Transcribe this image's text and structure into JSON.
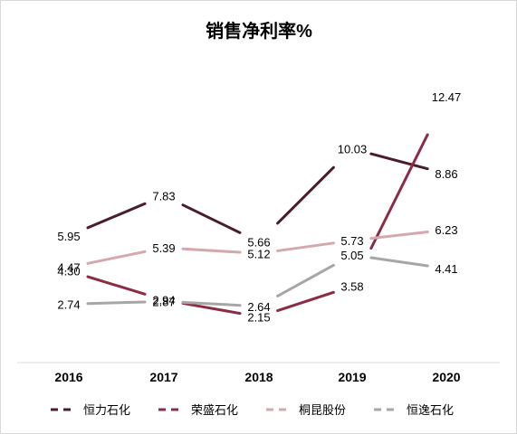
{
  "chart_data": {
    "type": "line",
    "title": "销售净利率%",
    "categories": [
      "2016",
      "2017",
      "2018",
      "2019",
      "2020"
    ],
    "series": [
      {
        "name": "恒力石化",
        "values": [
          5.95,
          7.83,
          5.66,
          10.03,
          8.86
        ],
        "labels": [
          "5.95",
          "7.83",
          "5.66",
          "10.03",
          "8.86"
        ],
        "color": "#4a1c2f"
      },
      {
        "name": "荣盛石化",
        "values": [
          4.3,
          2.94,
          2.15,
          3.58,
          12.47
        ],
        "labels": [
          "4.30",
          "2.94",
          "2.15",
          "3.58",
          "12.47"
        ],
        "color": "#8b2c45"
      },
      {
        "name": "桐昆股份",
        "values": [
          4.47,
          5.39,
          5.12,
          5.73,
          6.23
        ],
        "labels": [
          "4.47",
          "5.39",
          "5.12",
          "5.73",
          "6.23"
        ],
        "color": "#d4a8ad"
      },
      {
        "name": "恒逸石化",
        "values": [
          2.74,
          2.87,
          2.64,
          5.05,
          4.41
        ],
        "labels": [
          "2.74",
          "2.87",
          "2.64",
          "5.05",
          "4.41"
        ],
        "color": "#a6a6a6"
      }
    ],
    "ylim": [
      0,
      14
    ],
    "grid": false,
    "legend_position": "bottom"
  }
}
